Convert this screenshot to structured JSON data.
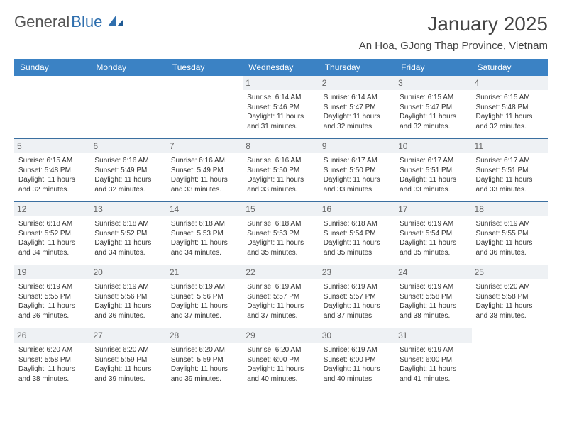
{
  "logo": {
    "part1": "General",
    "part2": "Blue"
  },
  "title": "January 2025",
  "location": "An Hoa, GJong Thap Province, Vietnam",
  "colors": {
    "header_bg": "#3b82c4",
    "header_text": "#ffffff",
    "daynum_bg": "#eef1f4",
    "daynum_text": "#666666",
    "border": "#3b6fa0",
    "logo_gray": "#555555",
    "logo_blue": "#2f6fae",
    "body_text": "#333333"
  },
  "day_names": [
    "Sunday",
    "Monday",
    "Tuesday",
    "Wednesday",
    "Thursday",
    "Friday",
    "Saturday"
  ],
  "weeks": [
    [
      {
        "empty": true
      },
      {
        "empty": true
      },
      {
        "empty": true
      },
      {
        "num": "1",
        "sunrise": "Sunrise: 6:14 AM",
        "sunset": "Sunset: 5:46 PM",
        "daylight": "Daylight: 11 hours and 31 minutes."
      },
      {
        "num": "2",
        "sunrise": "Sunrise: 6:14 AM",
        "sunset": "Sunset: 5:47 PM",
        "daylight": "Daylight: 11 hours and 32 minutes."
      },
      {
        "num": "3",
        "sunrise": "Sunrise: 6:15 AM",
        "sunset": "Sunset: 5:47 PM",
        "daylight": "Daylight: 11 hours and 32 minutes."
      },
      {
        "num": "4",
        "sunrise": "Sunrise: 6:15 AM",
        "sunset": "Sunset: 5:48 PM",
        "daylight": "Daylight: 11 hours and 32 minutes."
      }
    ],
    [
      {
        "num": "5",
        "sunrise": "Sunrise: 6:15 AM",
        "sunset": "Sunset: 5:48 PM",
        "daylight": "Daylight: 11 hours and 32 minutes."
      },
      {
        "num": "6",
        "sunrise": "Sunrise: 6:16 AM",
        "sunset": "Sunset: 5:49 PM",
        "daylight": "Daylight: 11 hours and 32 minutes."
      },
      {
        "num": "7",
        "sunrise": "Sunrise: 6:16 AM",
        "sunset": "Sunset: 5:49 PM",
        "daylight": "Daylight: 11 hours and 33 minutes."
      },
      {
        "num": "8",
        "sunrise": "Sunrise: 6:16 AM",
        "sunset": "Sunset: 5:50 PM",
        "daylight": "Daylight: 11 hours and 33 minutes."
      },
      {
        "num": "9",
        "sunrise": "Sunrise: 6:17 AM",
        "sunset": "Sunset: 5:50 PM",
        "daylight": "Daylight: 11 hours and 33 minutes."
      },
      {
        "num": "10",
        "sunrise": "Sunrise: 6:17 AM",
        "sunset": "Sunset: 5:51 PM",
        "daylight": "Daylight: 11 hours and 33 minutes."
      },
      {
        "num": "11",
        "sunrise": "Sunrise: 6:17 AM",
        "sunset": "Sunset: 5:51 PM",
        "daylight": "Daylight: 11 hours and 33 minutes."
      }
    ],
    [
      {
        "num": "12",
        "sunrise": "Sunrise: 6:18 AM",
        "sunset": "Sunset: 5:52 PM",
        "daylight": "Daylight: 11 hours and 34 minutes."
      },
      {
        "num": "13",
        "sunrise": "Sunrise: 6:18 AM",
        "sunset": "Sunset: 5:52 PM",
        "daylight": "Daylight: 11 hours and 34 minutes."
      },
      {
        "num": "14",
        "sunrise": "Sunrise: 6:18 AM",
        "sunset": "Sunset: 5:53 PM",
        "daylight": "Daylight: 11 hours and 34 minutes."
      },
      {
        "num": "15",
        "sunrise": "Sunrise: 6:18 AM",
        "sunset": "Sunset: 5:53 PM",
        "daylight": "Daylight: 11 hours and 35 minutes."
      },
      {
        "num": "16",
        "sunrise": "Sunrise: 6:18 AM",
        "sunset": "Sunset: 5:54 PM",
        "daylight": "Daylight: 11 hours and 35 minutes."
      },
      {
        "num": "17",
        "sunrise": "Sunrise: 6:19 AM",
        "sunset": "Sunset: 5:54 PM",
        "daylight": "Daylight: 11 hours and 35 minutes."
      },
      {
        "num": "18",
        "sunrise": "Sunrise: 6:19 AM",
        "sunset": "Sunset: 5:55 PM",
        "daylight": "Daylight: 11 hours and 36 minutes."
      }
    ],
    [
      {
        "num": "19",
        "sunrise": "Sunrise: 6:19 AM",
        "sunset": "Sunset: 5:55 PM",
        "daylight": "Daylight: 11 hours and 36 minutes."
      },
      {
        "num": "20",
        "sunrise": "Sunrise: 6:19 AM",
        "sunset": "Sunset: 5:56 PM",
        "daylight": "Daylight: 11 hours and 36 minutes."
      },
      {
        "num": "21",
        "sunrise": "Sunrise: 6:19 AM",
        "sunset": "Sunset: 5:56 PM",
        "daylight": "Daylight: 11 hours and 37 minutes."
      },
      {
        "num": "22",
        "sunrise": "Sunrise: 6:19 AM",
        "sunset": "Sunset: 5:57 PM",
        "daylight": "Daylight: 11 hours and 37 minutes."
      },
      {
        "num": "23",
        "sunrise": "Sunrise: 6:19 AM",
        "sunset": "Sunset: 5:57 PM",
        "daylight": "Daylight: 11 hours and 37 minutes."
      },
      {
        "num": "24",
        "sunrise": "Sunrise: 6:19 AM",
        "sunset": "Sunset: 5:58 PM",
        "daylight": "Daylight: 11 hours and 38 minutes."
      },
      {
        "num": "25",
        "sunrise": "Sunrise: 6:20 AM",
        "sunset": "Sunset: 5:58 PM",
        "daylight": "Daylight: 11 hours and 38 minutes."
      }
    ],
    [
      {
        "num": "26",
        "sunrise": "Sunrise: 6:20 AM",
        "sunset": "Sunset: 5:58 PM",
        "daylight": "Daylight: 11 hours and 38 minutes."
      },
      {
        "num": "27",
        "sunrise": "Sunrise: 6:20 AM",
        "sunset": "Sunset: 5:59 PM",
        "daylight": "Daylight: 11 hours and 39 minutes."
      },
      {
        "num": "28",
        "sunrise": "Sunrise: 6:20 AM",
        "sunset": "Sunset: 5:59 PM",
        "daylight": "Daylight: 11 hours and 39 minutes."
      },
      {
        "num": "29",
        "sunrise": "Sunrise: 6:20 AM",
        "sunset": "Sunset: 6:00 PM",
        "daylight": "Daylight: 11 hours and 40 minutes."
      },
      {
        "num": "30",
        "sunrise": "Sunrise: 6:19 AM",
        "sunset": "Sunset: 6:00 PM",
        "daylight": "Daylight: 11 hours and 40 minutes."
      },
      {
        "num": "31",
        "sunrise": "Sunrise: 6:19 AM",
        "sunset": "Sunset: 6:00 PM",
        "daylight": "Daylight: 11 hours and 41 minutes."
      },
      {
        "empty": true
      }
    ]
  ]
}
